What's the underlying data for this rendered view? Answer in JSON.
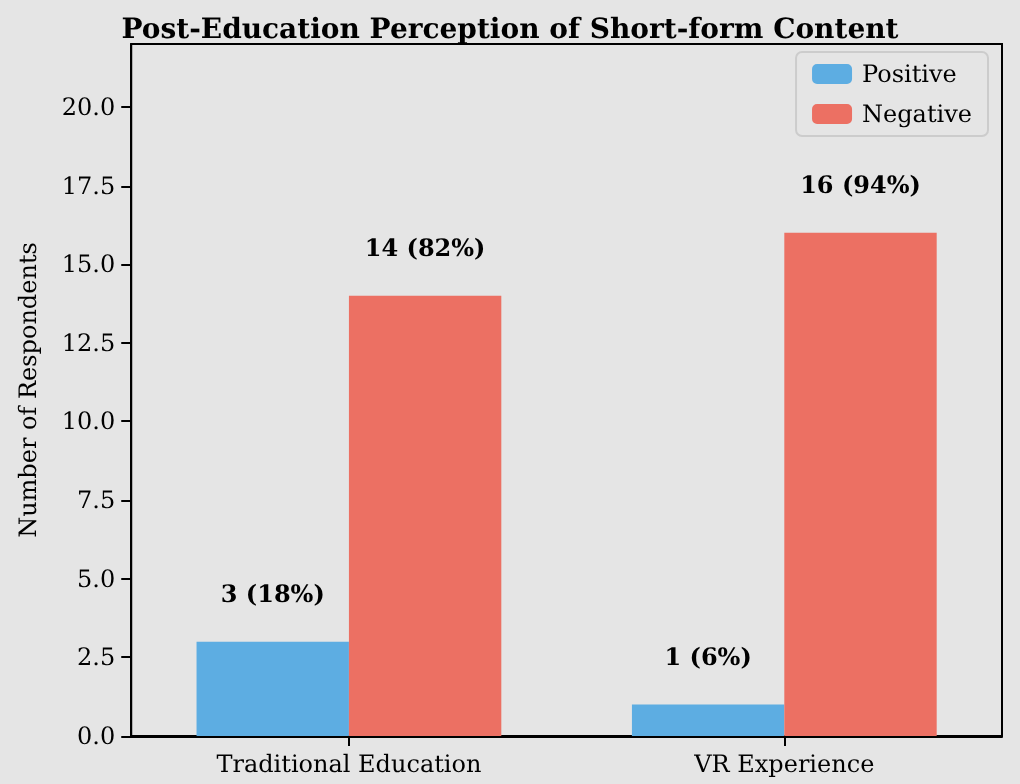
{
  "chart_data": {
    "type": "bar",
    "title": "Post-Education Perception of Short-form Content",
    "ylabel": "Number of Respondents",
    "categories": [
      "Traditional Education",
      "VR Experience"
    ],
    "series": [
      {
        "name": "Positive",
        "color": "#5dade2",
        "values": [
          3,
          1
        ],
        "value_labels": [
          "3 (18%)",
          "1 (6%)"
        ]
      },
      {
        "name": "Negative",
        "color": "#ec7063",
        "values": [
          14,
          16
        ],
        "value_labels": [
          "14 (82%)",
          "16 (94%)"
        ]
      }
    ],
    "ylim": [
      0,
      22
    ],
    "yticks": [
      {
        "value": 0,
        "label": "0.0"
      },
      {
        "value": 2.5,
        "label": "2.5"
      },
      {
        "value": 5,
        "label": "5.0"
      },
      {
        "value": 7.5,
        "label": "7.5"
      },
      {
        "value": 10,
        "label": "10.0"
      },
      {
        "value": 12.5,
        "label": "12.5"
      },
      {
        "value": 15,
        "label": "15.0"
      },
      {
        "value": 17.5,
        "label": "17.5"
      },
      {
        "value": 20,
        "label": "20.0"
      }
    ],
    "grid": false,
    "legend": "top right"
  }
}
